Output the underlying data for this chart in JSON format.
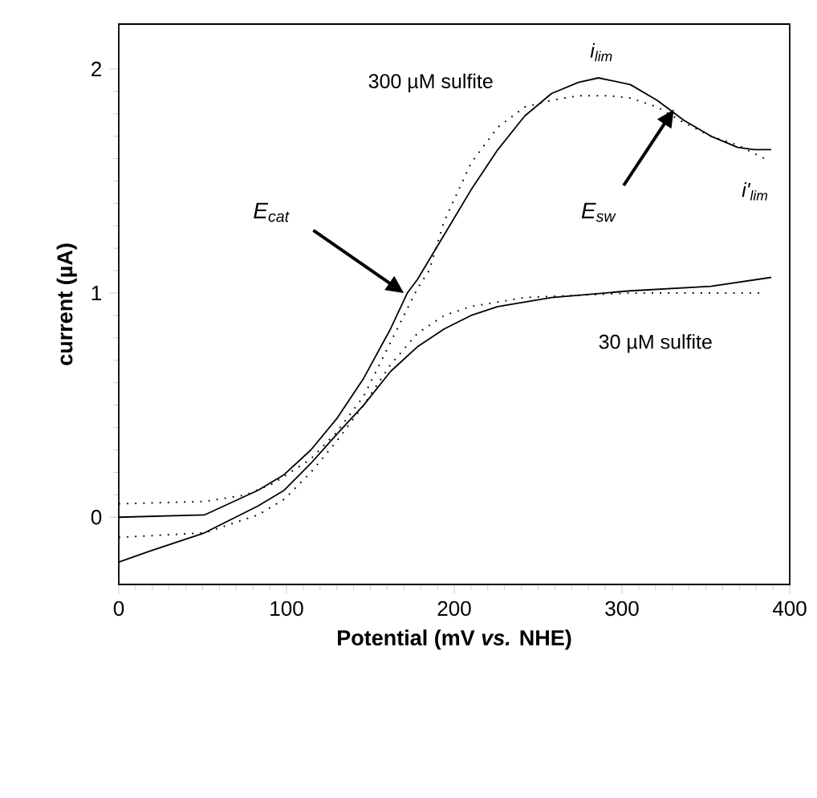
{
  "chart_data": {
    "type": "line",
    "xlabel": "Potential (mV *vs.* NHE)",
    "ylabel": "current (µA)",
    "xlim": [
      0,
      400
    ],
    "ylim": [
      -0.3,
      2.2
    ],
    "xticks": [
      0,
      100,
      200,
      300,
      400
    ],
    "yticks": [
      0,
      1,
      2
    ],
    "marker": "none",
    "grid": false,
    "series": [
      {
        "color": "#000000",
        "line_style": "solid",
        "x": [
          0,
          51,
          83,
          98.6,
          114.5,
          130,
          146,
          162,
          172,
          178,
          194,
          210,
          226,
          242,
          258,
          274,
          286,
          305,
          321,
          337,
          353,
          369,
          379,
          389
        ],
        "values": [
          0,
          0.01,
          0.12,
          0.19,
          0.3,
          0.44,
          0.62,
          0.84,
          1.0,
          1.06,
          1.26,
          1.46,
          1.64,
          1.79,
          1.89,
          1.94,
          1.96,
          1.93,
          1.86,
          1.77,
          1.7,
          1.65,
          1.64,
          1.64
        ]
      },
      {
        "color": "#000000",
        "line_style": "dotted",
        "x": [
          0,
          51,
          76,
          92,
          114.5,
          130,
          146,
          162,
          178,
          185,
          194,
          210,
          226,
          242,
          258,
          274,
          293,
          305,
          321,
          337,
          353,
          369,
          385
        ],
        "values": [
          0.06,
          0.07,
          0.1,
          0.15,
          0.26,
          0.38,
          0.54,
          0.78,
          1.02,
          1.1,
          1.32,
          1.58,
          1.74,
          1.83,
          1.86,
          1.88,
          1.88,
          1.87,
          1.83,
          1.76,
          1.7,
          1.66,
          1.6
        ]
      },
      {
        "color": "#000000",
        "line_style": "solid",
        "x": [
          0,
          19,
          51,
          83,
          98.6,
          114.5,
          130,
          146,
          162,
          178,
          194,
          210,
          226,
          258,
          305,
          353,
          389
        ],
        "values": [
          -0.2,
          -0.15,
          -0.07,
          0.05,
          0.12,
          0.24,
          0.37,
          0.5,
          0.65,
          0.76,
          0.84,
          0.9,
          0.94,
          0.98,
          1.01,
          1.03,
          1.07
        ]
      },
      {
        "color": "#000000",
        "line_style": "dotted",
        "x": [
          0,
          51,
          83,
          98.6,
          114.5,
          130,
          146,
          162,
          178,
          194,
          210,
          242,
          305,
          383
        ],
        "values": [
          -0.09,
          -0.07,
          0.01,
          0.08,
          0.2,
          0.34,
          0.5,
          0.68,
          0.82,
          0.9,
          0.94,
          0.98,
          1.0,
          1.0
        ]
      }
    ],
    "annotations": [
      "300 µM sulfite",
      "30 µM sulfite",
      {
        "text": "i$_{lim}$",
        "x": 286,
        "y": 1.96
      },
      {
        "text": "i'$_{lim}$",
        "x": 389,
        "y": 1.64
      },
      "E$_{cat}$",
      "E$_{sw}$"
    ]
  }
}
